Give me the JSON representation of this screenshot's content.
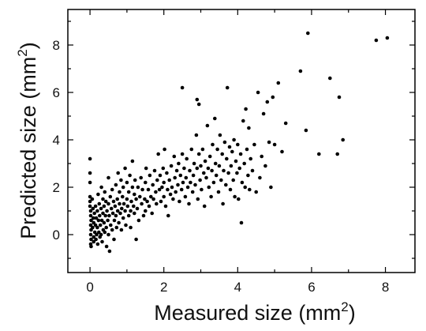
{
  "chart_data": {
    "type": "scatter",
    "title": "",
    "xlabel": {
      "text": "Measured size (mm",
      "sup": "2",
      "suffix": ")"
    },
    "ylabel": {
      "text": "Predicted size (mm",
      "sup": "2",
      "suffix": ")"
    },
    "xlim": [
      -0.6,
      8.8
    ],
    "ylim": [
      -1.6,
      9.5
    ],
    "xticks": [
      0,
      2,
      4,
      6,
      8
    ],
    "xtick_labels": [
      "0",
      "2",
      "4",
      "6",
      "8"
    ],
    "yticks": [
      0,
      2,
      4,
      6,
      8
    ],
    "ytick_labels": [
      "0",
      "2",
      "4",
      "6",
      "8"
    ],
    "grid": false,
    "legend": "none",
    "marker_color": "#000000",
    "series": [
      {
        "points": [
          [
            0,
            3.2
          ],
          [
            0,
            2.6
          ],
          [
            0,
            2.2
          ],
          [
            0,
            1.6
          ],
          [
            0,
            1.4
          ],
          [
            0,
            1.2
          ],
          [
            0.02,
            1.0
          ],
          [
            0.02,
            0.8
          ],
          [
            0.03,
            0.6
          ],
          [
            0.02,
            0.4
          ],
          [
            0.03,
            0.2
          ],
          [
            0.02,
            0.0
          ],
          [
            0.03,
            -0.2
          ],
          [
            0.02,
            -0.4
          ],
          [
            0.03,
            -0.5
          ],
          [
            0.06,
            1.5
          ],
          [
            0.08,
            1.1
          ],
          [
            0.09,
            0.7
          ],
          [
            0.07,
            0.3
          ],
          [
            0.1,
            0.5
          ],
          [
            0.1,
            -0.1
          ],
          [
            0.1,
            -0.3
          ],
          [
            0.12,
            0.9
          ],
          [
            0.13,
            0.1
          ],
          [
            0.15,
            1.2
          ],
          [
            0.15,
            0.4
          ],
          [
            0.16,
            -0.2
          ],
          [
            0.17,
            0.7
          ],
          [
            0.18,
            0.0
          ],
          [
            0.2,
            1.0
          ],
          [
            0.2,
            0.3
          ],
          [
            0.21,
            -0.4
          ],
          [
            0.22,
            1.7
          ],
          [
            0.23,
            0.6
          ],
          [
            0.24,
            0.1
          ],
          [
            0.25,
            1.3
          ],
          [
            0.26,
            0.8
          ],
          [
            0.27,
            -0.1
          ],
          [
            0.28,
            0.4
          ],
          [
            0.3,
            1.1
          ],
          [
            0.3,
            0.0
          ],
          [
            0.31,
            2.0
          ],
          [
            0.32,
            0.6
          ],
          [
            0.33,
            -0.3
          ],
          [
            0.35,
            1.5
          ],
          [
            0.35,
            0.9
          ],
          [
            0.36,
            0.2
          ],
          [
            0.38,
            1.2
          ],
          [
            0.38,
            0.5
          ],
          [
            0.4,
            0.1
          ],
          [
            0.4,
            1.8
          ],
          [
            0.42,
            0.8
          ],
          [
            0.43,
            1.4
          ],
          [
            0.44,
            0.3
          ],
          [
            0.45,
            -0.5
          ],
          [
            0.46,
            1.0
          ],
          [
            0.48,
            0.6
          ],
          [
            0.5,
            2.4
          ],
          [
            0.5,
            1.3
          ],
          [
            0.5,
            0.0
          ],
          [
            0.52,
            0.8
          ],
          [
            0.53,
            -0.7
          ],
          [
            0.55,
            1.6
          ],
          [
            0.56,
            0.4
          ],
          [
            0.58,
            1.1
          ],
          [
            0.6,
            0.2
          ],
          [
            0.6,
            1.9
          ],
          [
            0.62,
            0.9
          ],
          [
            0.64,
            1.4
          ],
          [
            0.65,
            -0.2
          ],
          [
            0.66,
            0.6
          ],
          [
            0.68,
            1.2
          ],
          [
            0.7,
            2.1
          ],
          [
            0.7,
            0.8
          ],
          [
            0.72,
            0.3
          ],
          [
            0.74,
            1.5
          ],
          [
            0.75,
            1.0
          ],
          [
            0.76,
            2.6
          ],
          [
            0.78,
            0.5
          ],
          [
            0.8,
            1.3
          ],
          [
            0.8,
            1.8
          ],
          [
            0.82,
            0.9
          ],
          [
            0.84,
            2.3
          ],
          [
            0.85,
            0.2
          ],
          [
            0.86,
            1.1
          ],
          [
            0.88,
            1.6
          ],
          [
            0.9,
            0.7
          ],
          [
            0.9,
            2.0
          ],
          [
            0.92,
            1.3
          ],
          [
            0.95,
            2.8
          ],
          [
            0.95,
            1.0
          ],
          [
            0.97,
            0.4
          ],
          [
            1.0,
            1.5
          ],
          [
            1.0,
            2.2
          ],
          [
            1.02,
            1.2
          ],
          [
            1.05,
            0.8
          ],
          [
            1.05,
            1.8
          ],
          [
            1.08,
            2.5
          ],
          [
            1.1,
            1.0
          ],
          [
            1.1,
            0.3
          ],
          [
            1.12,
            1.4
          ],
          [
            1.15,
            2.0
          ],
          [
            1.15,
            3.1
          ],
          [
            1.18,
            1.2
          ],
          [
            1.2,
            1.7
          ],
          [
            1.2,
            0.9
          ],
          [
            1.22,
            2.3
          ],
          [
            1.25,
            -0.2
          ],
          [
            1.25,
            1.5
          ],
          [
            1.28,
            1.1
          ],
          [
            1.3,
            2.0
          ],
          [
            1.32,
            0.6
          ],
          [
            1.35,
            1.6
          ],
          [
            1.38,
            2.4
          ],
          [
            1.4,
            1.3
          ],
          [
            1.42,
            1.9
          ],
          [
            1.45,
            0.8
          ],
          [
            1.48,
            1.5
          ],
          [
            1.5,
            2.2
          ],
          [
            1.5,
            1.0
          ],
          [
            1.52,
            2.8
          ],
          [
            1.55,
            1.4
          ],
          [
            1.58,
            1.9
          ],
          [
            1.6,
            1.2
          ],
          [
            1.62,
            2.5
          ],
          [
            1.65,
            1.6
          ],
          [
            1.68,
            0.9
          ],
          [
            1.7,
            2.1
          ],
          [
            1.72,
            1.5
          ],
          [
            1.75,
            2.7
          ],
          [
            1.78,
            1.8
          ],
          [
            1.8,
            1.3
          ],
          [
            1.82,
            2.3
          ],
          [
            1.85,
            3.4
          ],
          [
            1.88,
            1.9
          ],
          [
            1.9,
            2.5
          ],
          [
            1.92,
            1.4
          ],
          [
            1.95,
            2.0
          ],
          [
            1.98,
            2.8
          ],
          [
            2.0,
            1.6
          ],
          [
            2.0,
            2.2
          ],
          [
            2.02,
            3.6
          ],
          [
            2.05,
            1.2
          ],
          [
            2.08,
            2.6
          ],
          [
            2.1,
            1.9
          ],
          [
            2.12,
            0.8
          ],
          [
            2.15,
            2.3
          ],
          [
            2.18,
            1.7
          ],
          [
            2.2,
            2.9
          ],
          [
            2.22,
            2.0
          ],
          [
            2.25,
            1.5
          ],
          [
            2.28,
            3.3
          ],
          [
            2.3,
            2.4
          ],
          [
            2.32,
            1.8
          ],
          [
            2.35,
            2.7
          ],
          [
            2.38,
            2.1
          ],
          [
            2.4,
            3.0
          ],
          [
            2.42,
            1.4
          ],
          [
            2.45,
            2.5
          ],
          [
            2.48,
            1.9
          ],
          [
            2.5,
            6.2
          ],
          [
            2.5,
            3.4
          ],
          [
            2.52,
            2.2
          ],
          [
            2.55,
            2.8
          ],
          [
            2.58,
            1.6
          ],
          [
            2.6,
            2.4
          ],
          [
            2.62,
            3.2
          ],
          [
            2.65,
            2.0
          ],
          [
            2.68,
            1.3
          ],
          [
            2.7,
            2.7
          ],
          [
            2.72,
            2.2
          ],
          [
            2.75,
            3.6
          ],
          [
            2.78,
            1.8
          ],
          [
            2.8,
            2.5
          ],
          [
            2.82,
            3.0
          ],
          [
            2.85,
            2.1
          ],
          [
            2.88,
            4.2
          ],
          [
            2.9,
            5.7
          ],
          [
            2.9,
            2.8
          ],
          [
            2.92,
            1.5
          ],
          [
            2.95,
            3.4
          ],
          [
            2.95,
            5.5
          ],
          [
            2.98,
            2.3
          ],
          [
            3.0,
            2.9
          ],
          [
            3.02,
            1.9
          ],
          [
            3.05,
            3.6
          ],
          [
            3.08,
            2.6
          ],
          [
            3.1,
            1.2
          ],
          [
            3.12,
            3.1
          ],
          [
            3.15,
            2.4
          ],
          [
            3.18,
            4.6
          ],
          [
            3.2,
            2.8
          ],
          [
            3.22,
            2.0
          ],
          [
            3.25,
            3.3
          ],
          [
            3.28,
            1.6
          ],
          [
            3.3,
            2.7
          ],
          [
            3.32,
            3.8
          ],
          [
            3.35,
            2.2
          ],
          [
            3.38,
            4.9
          ],
          [
            3.4,
            3.0
          ],
          [
            3.42,
            2.5
          ],
          [
            3.45,
            3.6
          ],
          [
            3.48,
            1.8
          ],
          [
            3.5,
            2.9
          ],
          [
            3.52,
            4.2
          ],
          [
            3.55,
            2.3
          ],
          [
            3.58,
            3.4
          ],
          [
            3.6,
            1.3
          ],
          [
            3.62,
            2.7
          ],
          [
            3.65,
            3.9
          ],
          [
            3.68,
            2.1
          ],
          [
            3.7,
            3.2
          ],
          [
            3.72,
            6.2
          ],
          [
            3.75,
            2.6
          ],
          [
            3.78,
            3.7
          ],
          [
            3.8,
            1.9
          ],
          [
            3.82,
            2.9
          ],
          [
            3.85,
            3.5
          ],
          [
            3.88,
            2.3
          ],
          [
            3.9,
            4.0
          ],
          [
            3.92,
            1.6
          ],
          [
            3.95,
            3.1
          ],
          [
            3.98,
            2.6
          ],
          [
            4.0,
            3.8
          ],
          [
            4.02,
            1.5
          ],
          [
            4.05,
            2.8
          ],
          [
            4.08,
            3.4
          ],
          [
            4.1,
            0.5
          ],
          [
            4.12,
            2.2
          ],
          [
            4.15,
            4.8
          ],
          [
            4.18,
            3.0
          ],
          [
            4.2,
            2.0
          ],
          [
            4.22,
            5.3
          ],
          [
            4.25,
            3.6
          ],
          [
            4.28,
            2.5
          ],
          [
            4.3,
            4.5
          ],
          [
            4.32,
            1.9
          ],
          [
            4.35,
            3.2
          ],
          [
            4.4,
            2.7
          ],
          [
            4.45,
            3.8
          ],
          [
            4.5,
            1.8
          ],
          [
            4.55,
            6.0
          ],
          [
            4.6,
            2.4
          ],
          [
            4.65,
            3.3
          ],
          [
            4.7,
            5.1
          ],
          [
            4.75,
            2.9
          ],
          [
            4.8,
            5.6
          ],
          [
            4.85,
            3.9
          ],
          [
            4.9,
            2.0
          ],
          [
            4.95,
            5.8
          ],
          [
            5.0,
            3.8
          ],
          [
            5.1,
            6.4
          ],
          [
            5.2,
            3.5
          ],
          [
            5.3,
            4.7
          ],
          [
            5.7,
            6.9
          ],
          [
            5.85,
            4.4
          ],
          [
            5.9,
            8.5
          ],
          [
            6.2,
            3.4
          ],
          [
            6.5,
            6.6
          ],
          [
            6.7,
            3.4
          ],
          [
            6.75,
            5.8
          ],
          [
            6.85,
            4.0
          ],
          [
            7.75,
            8.2
          ],
          [
            8.05,
            8.3
          ]
        ]
      }
    ]
  }
}
